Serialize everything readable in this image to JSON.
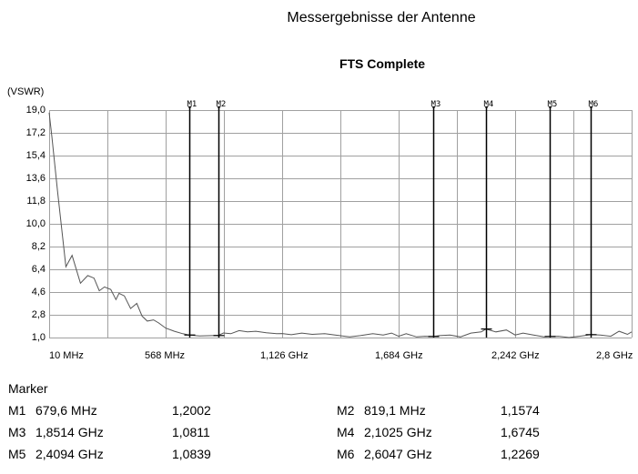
{
  "title": "Messergebnisse der Antenne",
  "subtitle": "FTS Complete",
  "chart_data": {
    "type": "line",
    "title": "FTS Complete",
    "xlabel": "",
    "ylabel": "(VSWR)",
    "xlim_mhz": [
      10,
      2800
    ],
    "ylim": [
      1.0,
      19.0
    ],
    "grid": true,
    "legend": "none",
    "x_tick_labels": [
      "10 MHz",
      "568 MHz",
      "1,126 GHz",
      "1,684 GHz",
      "2,242 GHz",
      "2,8 GHz"
    ],
    "y_tick_labels": [
      "19,0",
      "17,2",
      "15,4",
      "13,6",
      "11,8",
      "10,0",
      "8,2",
      "6,4",
      "4,6",
      "2,8",
      "1,0"
    ],
    "series": [
      {
        "name": "VSWR",
        "color": "#555555",
        "x_mhz": [
          10,
          23,
          50,
          90,
          120,
          160,
          195,
          225,
          250,
          275,
          305,
          330,
          345,
          370,
          400,
          430,
          455,
          480,
          510,
          535,
          568,
          610,
          650,
          680,
          730,
          790,
          819,
          845,
          880,
          920,
          960,
          1000,
          1050,
          1100,
          1126,
          1170,
          1220,
          1270,
          1330,
          1380,
          1450,
          1500,
          1560,
          1610,
          1650,
          1684,
          1720,
          1770,
          1810,
          1851,
          1880,
          1930,
          1980,
          2030,
          2080,
          2102,
          2150,
          2200,
          2242,
          2280,
          2330,
          2380,
          2409,
          2450,
          2500,
          2550,
          2605,
          2650,
          2700,
          2740,
          2780,
          2800
        ],
        "values": [
          18.8,
          16.9,
          12.6,
          6.6,
          7.5,
          5.3,
          5.9,
          5.7,
          4.7,
          5.0,
          4.8,
          4.0,
          4.5,
          4.3,
          3.3,
          3.7,
          2.7,
          2.3,
          2.4,
          2.15,
          1.75,
          1.5,
          1.3,
          1.2,
          1.12,
          1.15,
          1.16,
          1.36,
          1.3,
          1.55,
          1.45,
          1.5,
          1.38,
          1.3,
          1.32,
          1.22,
          1.35,
          1.25,
          1.3,
          1.2,
          1.05,
          1.15,
          1.3,
          1.2,
          1.35,
          1.1,
          1.3,
          1.05,
          1.1,
          1.08,
          1.15,
          1.2,
          1.05,
          1.35,
          1.45,
          1.67,
          1.45,
          1.6,
          1.2,
          1.35,
          1.2,
          1.05,
          1.08,
          1.1,
          1.0,
          1.1,
          1.23,
          1.2,
          1.1,
          1.5,
          1.25,
          1.45
        ]
      }
    ],
    "markers": [
      {
        "id": "M1",
        "label": "M1",
        "freq": "679,6 MHz",
        "freq_mhz": 679.6,
        "value": "1,2002",
        "vswr": 1.2002
      },
      {
        "id": "M2",
        "label": "M2",
        "freq": "819,1 MHz",
        "freq_mhz": 819.1,
        "value": "1,1574",
        "vswr": 1.1574
      },
      {
        "id": "M3",
        "label": "M3",
        "freq": "1,8514 GHz",
        "freq_mhz": 1851.4,
        "value": "1,0811",
        "vswr": 1.0811
      },
      {
        "id": "M4",
        "label": "M4",
        "freq": "2,1025 GHz",
        "freq_mhz": 2102.5,
        "value": "1,6745",
        "vswr": 1.6745
      },
      {
        "id": "M5",
        "label": "M5",
        "freq": "2,4094 GHz",
        "freq_mhz": 2409.4,
        "value": "1,0839",
        "vswr": 1.0839
      },
      {
        "id": "M6",
        "label": "M6",
        "freq": "2,6047 GHz",
        "freq_mhz": 2604.7,
        "value": "1,2269",
        "vswr": 1.2269
      }
    ]
  },
  "marker_table": {
    "header": "Marker",
    "rows": [
      {
        "id": "M1",
        "freq": "679,6 MHz",
        "value": "1,2002"
      },
      {
        "id": "M2",
        "freq": "819,1 MHz",
        "value": "1,1574"
      },
      {
        "id": "M3",
        "freq": "1,8514 GHz",
        "value": "1,0811"
      },
      {
        "id": "M4",
        "freq": "2,1025 GHz",
        "value": "1,6745"
      },
      {
        "id": "M5",
        "freq": "2,4094 GHz",
        "value": "1,0839"
      },
      {
        "id": "M6",
        "freq": "2,6047 GHz",
        "value": "1,2269"
      }
    ]
  },
  "colors": {
    "grid": "#a0a0a0",
    "trace": "#555555",
    "marker": "#000000",
    "background": "#ffffff"
  }
}
